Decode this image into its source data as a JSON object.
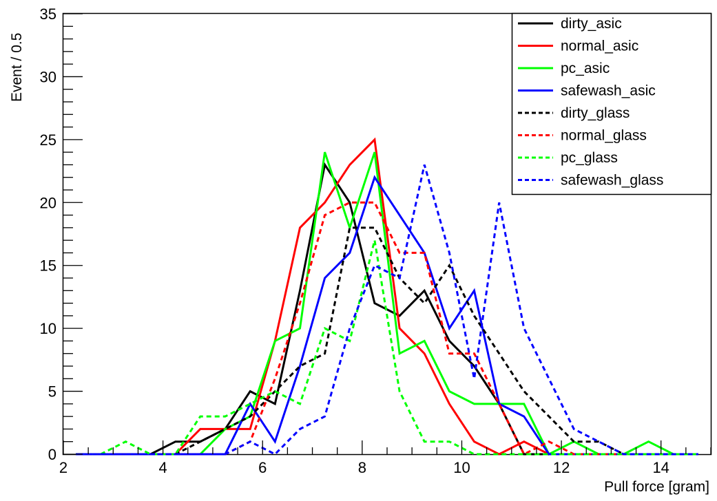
{
  "chart_data": {
    "type": "line",
    "xlabel": "Pull force [gram]",
    "ylabel": "Event / 0.5",
    "xlim": [
      2,
      15
    ],
    "ylim": [
      0,
      35
    ],
    "x_ticks": [
      2,
      4,
      6,
      8,
      10,
      12,
      14
    ],
    "y_ticks": [
      0,
      5,
      10,
      15,
      20,
      25,
      30,
      35
    ],
    "x_tick_labels": [
      "2",
      "4",
      "6",
      "8",
      "10",
      "12",
      "14"
    ],
    "y_tick_labels": [
      "0",
      "5",
      "10",
      "15",
      "20",
      "25",
      "30",
      "35"
    ],
    "grid": false,
    "legend_position": "top-right",
    "x": [
      2.25,
      2.75,
      3.25,
      3.75,
      4.25,
      4.75,
      5.25,
      5.75,
      6.25,
      6.75,
      7.25,
      7.75,
      8.25,
      8.75,
      9.25,
      9.75,
      10.25,
      10.75,
      11.25,
      11.75,
      12.25,
      12.75,
      13.25,
      13.75,
      14.25,
      14.75
    ],
    "series": [
      {
        "name": "dirty_asic",
        "color": "#000000",
        "dash": "solid",
        "values": [
          0,
          0,
          0,
          0,
          1,
          1,
          2,
          5,
          4,
          13,
          23,
          20,
          12,
          11,
          13,
          9,
          7,
          4,
          0,
          0,
          0,
          0,
          0,
          0,
          0,
          0
        ]
      },
      {
        "name": "normal_asic",
        "color": "#ff0000",
        "dash": "solid",
        "values": [
          0,
          0,
          0,
          0,
          0,
          2,
          2,
          2,
          9,
          18,
          20,
          23,
          25,
          10,
          8,
          4,
          1,
          0,
          1,
          0,
          0,
          0,
          0,
          0,
          0,
          0
        ]
      },
      {
        "name": "pc_asic",
        "color": "#00ff00",
        "dash": "solid",
        "values": [
          0,
          0,
          0,
          0,
          0,
          0,
          2,
          3,
          9,
          10,
          24,
          18,
          24,
          8,
          9,
          5,
          4,
          4,
          4,
          0,
          1,
          0,
          0,
          1,
          0,
          0
        ]
      },
      {
        "name": "safewash_asic",
        "color": "#0000ff",
        "dash": "solid",
        "values": [
          0,
          0,
          0,
          0,
          0,
          0,
          0,
          4,
          1,
          7,
          14,
          16,
          22,
          19,
          16,
          10,
          13,
          4,
          3,
          0,
          0,
          0,
          0,
          0,
          0,
          0
        ]
      },
      {
        "name": "dirty_glass",
        "color": "#000000",
        "dash": "dashed",
        "values": [
          0,
          0,
          0,
          0,
          0,
          1,
          2,
          3,
          5,
          7,
          8,
          18,
          18,
          14,
          12,
          15,
          11,
          8,
          5,
          3,
          1,
          1,
          0,
          0,
          0,
          0
        ]
      },
      {
        "name": "normal_glass",
        "color": "#ff0000",
        "dash": "dashed",
        "values": [
          0,
          0,
          0,
          0,
          0,
          0,
          0,
          1,
          6,
          12,
          19,
          20,
          20,
          16,
          16,
          8,
          8,
          4,
          0,
          1,
          0,
          0,
          0,
          0,
          0,
          0
        ]
      },
      {
        "name": "pc_glass",
        "color": "#00ff00",
        "dash": "dashed",
        "values": [
          0,
          0,
          1,
          0,
          0,
          3,
          3,
          4,
          5,
          4,
          10,
          9,
          17,
          5,
          1,
          1,
          0,
          0,
          0,
          0,
          0,
          0,
          0,
          0,
          0,
          0
        ]
      },
      {
        "name": "safewash_glass",
        "color": "#0000ff",
        "dash": "dashed",
        "values": [
          0,
          0,
          0,
          0,
          0,
          0,
          0,
          1,
          0,
          2,
          3,
          10,
          15,
          14,
          23,
          16,
          6,
          20,
          10,
          6,
          2,
          1,
          0,
          0,
          0,
          0
        ]
      }
    ]
  }
}
